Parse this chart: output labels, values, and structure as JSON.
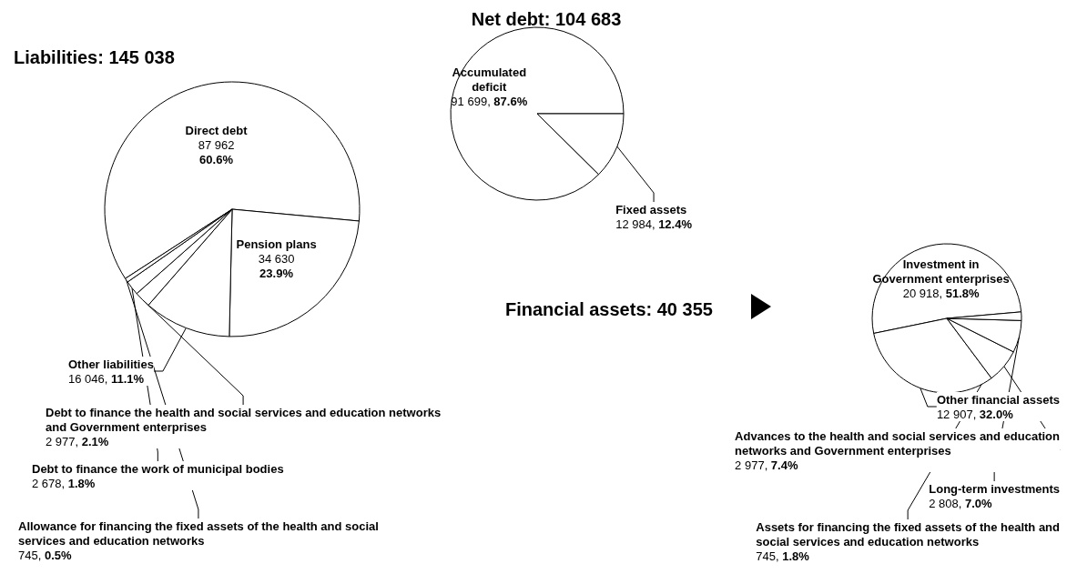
{
  "chart_data": [
    {
      "type": "pie",
      "title": "Liabilities: 145 038",
      "categories": [
        "Direct debt",
        "Pension plans",
        "Other liabilities",
        "Debt to finance the health and social services and education networks and Government enterprises",
        "Debt to finance the work of municipal bodies",
        "Allowance for financing the fixed assets of the health and social services and education networks"
      ],
      "values": [
        87962,
        34630,
        16046,
        2977,
        2678,
        745
      ],
      "value_labels": [
        "87 962\n60.6%",
        "34 630\n23.9%",
        "16 046, 11.1%",
        "2 977, 2.1%",
        "2 678, 1.8%",
        "745, 0.5%"
      ],
      "colors": [
        "#ffffff",
        "#ffffff",
        "#ffffff",
        "#ffffff",
        "#ffffff",
        "#ffffff"
      ],
      "legend": false
    },
    {
      "type": "pie",
      "title": "Net debt: 104 683",
      "categories": [
        "Accumulated deficit",
        "Fixed assets"
      ],
      "values": [
        91699,
        12984
      ],
      "value_labels": [
        "91 699, 87.6%",
        "12 984, 12.4%"
      ],
      "colors": [
        "#ffffff",
        "#ffffff"
      ],
      "legend": false
    },
    {
      "type": "pie",
      "title": "Financial assets: 40 355",
      "categories": [
        "Investment in Government enterprises",
        "Other financial assets",
        "Advances to the health and social services and education networks and Government enterprises",
        "Long-term investments",
        "Assets for financing the fixed assets of the health and social services and education networks"
      ],
      "values": [
        20918,
        12907,
        2977,
        2808,
        745
      ],
      "value_labels": [
        "20 918, 51.8%",
        "12 907, 32.0%",
        "2 977, 7.4%",
        "2 808, 7.0%",
        "745, 1.8%"
      ],
      "colors": [
        "#ffffff",
        "#ffffff",
        "#ffffff",
        "#ffffff",
        "#ffffff"
      ],
      "legend": false
    }
  ]
}
